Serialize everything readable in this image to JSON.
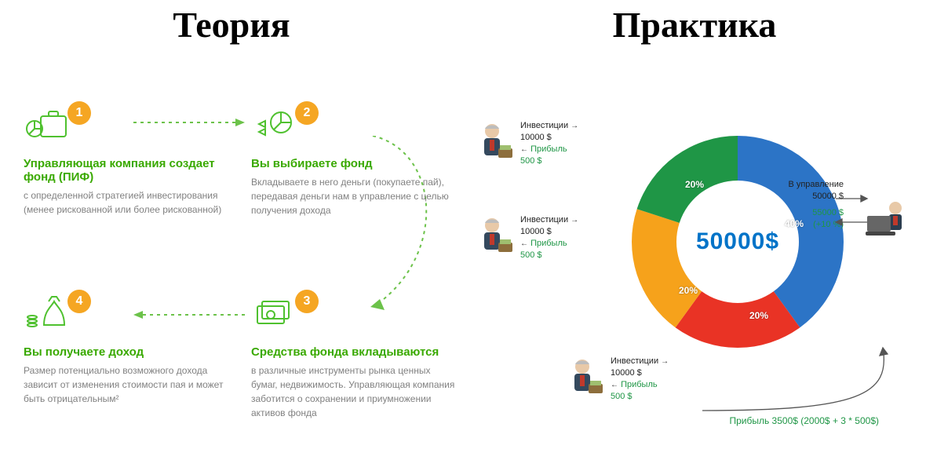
{
  "titles": {
    "left": "Теория",
    "right": "Практика"
  },
  "theory": {
    "badge_color": "#f5a623",
    "icon_stroke": "#4fc12f",
    "title_color": "#39a900",
    "desc_color": "#818181",
    "dash_color": "#6cc24a",
    "title_fontsize": 15,
    "desc_fontsize": 12,
    "steps": [
      {
        "n": "1",
        "title": "Управляющая компания создает фонд (ПИФ)",
        "desc": "с определенной стратегией инвестирования (менее рискованной или более рискованной)"
      },
      {
        "n": "2",
        "title": "Вы выбираете фонд",
        "desc": "Вкладываете в него деньги (покупаете пай), передавая деньги нам в управление с целью получения дохода"
      },
      {
        "n": "3",
        "title": "Средства фонда вкладываются",
        "desc": "в различные инструменты рынка ценных бумаг, недвижимость. Управляющая компания заботится о сохранении и приумножении активов фонда"
      },
      {
        "n": "4",
        "title": "Вы получаете доход",
        "desc": "Размер потенциально возможного дохода зависит от изменения стоимости пая и может быть отрицательным²"
      }
    ]
  },
  "practice": {
    "center_value": "50000$",
    "center_color": "#0073c8",
    "donut": {
      "radius_outer": 135,
      "radius_inner": 78,
      "segments": [
        {
          "label": "40%",
          "value": 40,
          "color": "#2c74c6"
        },
        {
          "label": "20%",
          "value": 20,
          "color": "#e93325"
        },
        {
          "label": "20%",
          "value": 20,
          "color": "#f6a21b"
        },
        {
          "label": "20%",
          "value": 20,
          "color": "#1f9646"
        }
      ]
    },
    "investors": [
      {
        "invest_lbl": "Инвестиции",
        "invest_val": "10000 $",
        "profit_lbl": "Прибыль",
        "profit_val": "500 $"
      },
      {
        "invest_lbl": "Инвестиции",
        "invest_val": "10000 $",
        "profit_lbl": "Прибыль",
        "profit_val": "500 $"
      },
      {
        "invest_lbl": "Инвестиции",
        "invest_val": "10000 $",
        "profit_lbl": "Прибыль",
        "profit_val": "500 $"
      }
    ],
    "manager": {
      "in_lbl": "В управление",
      "in_val": "50000 $",
      "ret_val": "55000 $",
      "ret_pct": "(+10 %)"
    },
    "profit_summary": "Прибыль 3500$ (2000$ + 3 * 500$)",
    "text_green": "#1f9646",
    "arrow_color": "#555555"
  }
}
